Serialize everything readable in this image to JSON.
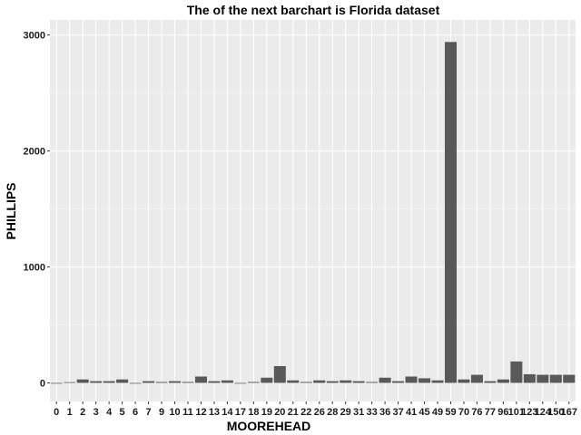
{
  "chart_data": {
    "type": "bar",
    "title": "The of the next barchart is Florida dataset",
    "xlabel": "MOOREHEAD",
    "ylabel": "PHILLIPS",
    "ylim": [
      -160,
      3130
    ],
    "yticks": [
      0,
      1000,
      2000,
      3000
    ],
    "grid": true,
    "categories": [
      "0",
      "1",
      "2",
      "3",
      "4",
      "5",
      "6",
      "7",
      "9",
      "10",
      "11",
      "12",
      "13",
      "14",
      "17",
      "18",
      "19",
      "20",
      "21",
      "22",
      "26",
      "28",
      "29",
      "31",
      "33",
      "36",
      "37",
      "41",
      "45",
      "49",
      "59",
      "70",
      "76",
      "77",
      "96",
      "101",
      "123",
      "124",
      "150",
      "167"
    ],
    "values": [
      0,
      6,
      30,
      15,
      15,
      30,
      0,
      15,
      8,
      15,
      8,
      55,
      15,
      22,
      0,
      8,
      45,
      145,
      22,
      8,
      22,
      15,
      22,
      15,
      8,
      45,
      15,
      55,
      40,
      22,
      2940,
      30,
      70,
      15,
      30,
      185,
      75,
      70,
      70,
      70
    ]
  },
  "colors": {
    "panel_bg": "#ebebeb",
    "grid_major": "#ffffff",
    "bar": "#595959"
  }
}
